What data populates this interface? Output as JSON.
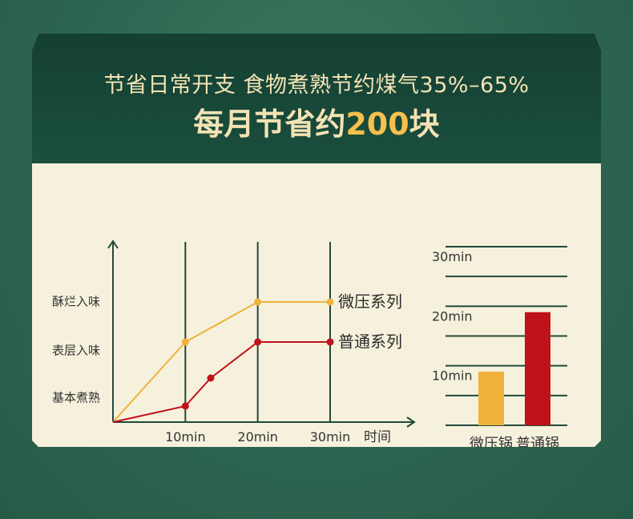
{
  "header": {
    "line1": "节省日常开支 食物煮熟节约煤气35%–65%",
    "line2_prefix": "每月节省约",
    "line2_highlight": "200",
    "line2_suffix": "块"
  },
  "colors": {
    "header_bg": "#184a3a",
    "card_bg": "#f6f1dc",
    "header_text": "#f3e3b4",
    "highlight": "#f5c04c",
    "series_micro_pressure": "#f0b23a",
    "series_regular": "#c0121a",
    "axis": "#1f4a3a"
  },
  "chart_data": [
    {
      "type": "line",
      "x_categories": [
        "10min",
        "20min",
        "30min"
      ],
      "xlabel": "时间",
      "y_categories": [
        "基本煮熟",
        "表层入味",
        "酥烂入味"
      ],
      "series": [
        {
          "name": "微压系列",
          "points": [
            [
              0,
              0
            ],
            [
              10,
              2
            ],
            [
              20,
              3
            ],
            [
              30,
              3
            ]
          ]
        },
        {
          "name": "普通系列",
          "points": [
            [
              0,
              0
            ],
            [
              10,
              0.4
            ],
            [
              13.5,
              1.1
            ],
            [
              20,
              2
            ],
            [
              30,
              2
            ]
          ]
        }
      ],
      "xlim": [
        0,
        30
      ],
      "ylim": [
        0,
        3
      ]
    },
    {
      "type": "bar",
      "categories": [
        "微压锅",
        "普通锅"
      ],
      "values": [
        9,
        19
      ],
      "ytick_labels": [
        "10min",
        "20min",
        "30min"
      ],
      "ytick_values": [
        10,
        20,
        30
      ],
      "ylim": [
        0,
        30
      ]
    }
  ]
}
